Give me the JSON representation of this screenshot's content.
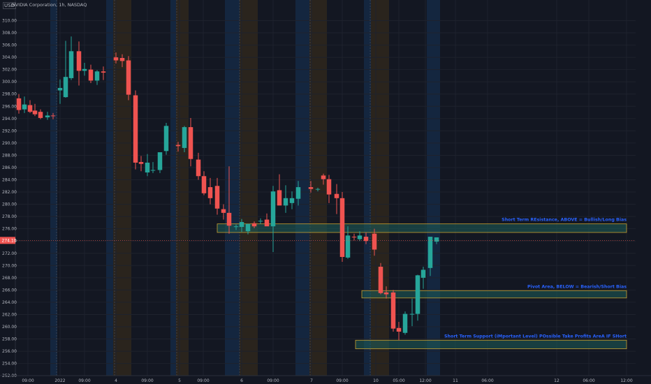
{
  "header": {
    "currency": "USD",
    "symbol_title": "NVIDIA Corporation, 1h, NASDAQ"
  },
  "colors": {
    "background": "#131722",
    "up": "#26a69a",
    "down": "#ef5350",
    "zone_fill": "#1d5e5a",
    "zone_border": "#c8a030",
    "label": "#2962ff",
    "price_tag": "#ef5350"
  },
  "current_price": {
    "value": 274.1,
    "label": "274.10"
  },
  "chart_data": {
    "type": "candlestick",
    "title": "NVIDIA Corporation, 1h, NASDAQ",
    "ylim": [
      251.5,
      311.5
    ],
    "y_ticks": [
      "252.00",
      "254.00",
      "256.00",
      "258.00",
      "260.00",
      "262.00",
      "264.00",
      "266.00",
      "268.00",
      "270.00",
      "272.00",
      "274.00",
      "276.00",
      "278.00",
      "280.00",
      "282.00",
      "284.00",
      "286.00",
      "288.00",
      "290.00",
      "292.00",
      "294.00",
      "296.00",
      "298.00",
      "300.00",
      "302.00",
      "304.00",
      "306.00",
      "308.00",
      "310.00"
    ],
    "x_ticks": [
      "09:00",
      "2022",
      "09:00",
      "4",
      "09:00",
      "5",
      "09:00",
      "6",
      "09:00",
      "7",
      "09:00",
      "10",
      "05:00",
      "12:00",
      "11",
      "06:00",
      "12",
      "06:00",
      "12:00"
    ],
    "grid": true,
    "series": [
      {
        "candles": [
          {
            "o": 297.3,
            "h": 298.0,
            "l": 294.8,
            "c": 295.4
          },
          {
            "o": 295.5,
            "h": 297.6,
            "l": 294.9,
            "c": 296.3
          },
          {
            "o": 296.2,
            "h": 297.0,
            "l": 294.9,
            "c": 295.1
          },
          {
            "o": 295.3,
            "h": 296.4,
            "l": 294.4,
            "c": 294.7
          },
          {
            "o": 295.1,
            "h": 295.5,
            "l": 293.9,
            "c": 294.1
          },
          {
            "o": 294.2,
            "h": 295.1,
            "l": 293.8,
            "c": 294.5
          },
          {
            "o": 294.5,
            "h": 294.9,
            "l": 293.9,
            "c": 294.4
          },
          {
            "o": 298.6,
            "h": 300.4,
            "l": 296.4,
            "c": 299.0
          },
          {
            "o": 297.5,
            "h": 306.7,
            "l": 297.4,
            "c": 300.8
          },
          {
            "o": 300.6,
            "h": 307.4,
            "l": 300.3,
            "c": 305.0
          },
          {
            "o": 305.0,
            "h": 306.6,
            "l": 299.4,
            "c": 301.8
          },
          {
            "o": 301.8,
            "h": 303.1,
            "l": 301.0,
            "c": 302.1
          },
          {
            "o": 302.0,
            "h": 302.8,
            "l": 299.8,
            "c": 300.2
          },
          {
            "o": 300.2,
            "h": 301.9,
            "l": 299.5,
            "c": 301.7
          },
          {
            "o": 301.7,
            "h": 302.5,
            "l": 300.3,
            "c": 301.5
          },
          {
            "o": 304.0,
            "h": 304.8,
            "l": 303.0,
            "c": 303.5
          },
          {
            "o": 303.9,
            "h": 304.5,
            "l": 302.4,
            "c": 303.4
          },
          {
            "o": 303.5,
            "h": 304.2,
            "l": 297.0,
            "c": 297.9
          },
          {
            "o": 297.8,
            "h": 298.6,
            "l": 285.7,
            "c": 286.8
          },
          {
            "o": 286.9,
            "h": 287.9,
            "l": 285.4,
            "c": 286.6
          },
          {
            "o": 285.2,
            "h": 288.2,
            "l": 284.6,
            "c": 286.8
          },
          {
            "o": 285.6,
            "h": 286.9,
            "l": 285.1,
            "c": 285.6
          },
          {
            "o": 285.6,
            "h": 288.3,
            "l": 285.1,
            "c": 288.5
          },
          {
            "o": 288.7,
            "h": 293.3,
            "l": 288.1,
            "c": 292.8
          },
          {
            "o": 289.7,
            "h": 290.2,
            "l": 288.6,
            "c": 289.5
          },
          {
            "o": 289.2,
            "h": 292.8,
            "l": 288.5,
            "c": 292.6
          },
          {
            "o": 292.6,
            "h": 294.1,
            "l": 286.2,
            "c": 287.4
          },
          {
            "o": 287.3,
            "h": 288.4,
            "l": 284.0,
            "c": 284.6
          },
          {
            "o": 284.6,
            "h": 285.4,
            "l": 281.5,
            "c": 281.8
          },
          {
            "o": 282.8,
            "h": 284.3,
            "l": 280.0,
            "c": 281.0
          },
          {
            "o": 283.0,
            "h": 284.3,
            "l": 278.3,
            "c": 279.3
          },
          {
            "o": 279.2,
            "h": 280.0,
            "l": 277.5,
            "c": 278.6
          },
          {
            "o": 278.6,
            "h": 286.2,
            "l": 275.2,
            "c": 276.5
          },
          {
            "o": 276.3,
            "h": 276.7,
            "l": 275.8,
            "c": 276.4
          },
          {
            "o": 276.3,
            "h": 277.6,
            "l": 275.5,
            "c": 277.1
          },
          {
            "o": 275.6,
            "h": 276.3,
            "l": 275.1,
            "c": 276.8
          },
          {
            "o": 276.9,
            "h": 277.2,
            "l": 276.1,
            "c": 276.4
          },
          {
            "o": 277.3,
            "h": 277.7,
            "l": 276.8,
            "c": 277.3
          },
          {
            "o": 277.5,
            "h": 278.5,
            "l": 276.6,
            "c": 276.4
          },
          {
            "o": 276.4,
            "h": 283.0,
            "l": 272.2,
            "c": 282.1
          },
          {
            "o": 282.3,
            "h": 284.9,
            "l": 280.2,
            "c": 279.8
          },
          {
            "o": 279.8,
            "h": 283.1,
            "l": 278.6,
            "c": 281.0
          },
          {
            "o": 280.2,
            "h": 282.1,
            "l": 279.2,
            "c": 281.0
          },
          {
            "o": 280.9,
            "h": 283.8,
            "l": 279.8,
            "c": 282.8
          },
          {
            "o": 282.8,
            "h": 283.8,
            "l": 281.9,
            "c": 282.5
          },
          {
            "o": 282.4,
            "h": 282.7,
            "l": 282.1,
            "c": 282.5
          },
          {
            "o": 284.7,
            "h": 285.0,
            "l": 283.2,
            "c": 284.1
          },
          {
            "o": 284.1,
            "h": 284.8,
            "l": 280.2,
            "c": 281.6
          },
          {
            "o": 281.7,
            "h": 283.3,
            "l": 278.4,
            "c": 281.0
          },
          {
            "o": 281.0,
            "h": 282.0,
            "l": 270.6,
            "c": 271.4
          },
          {
            "o": 271.3,
            "h": 276.4,
            "l": 271.1,
            "c": 274.9
          },
          {
            "o": 274.7,
            "h": 275.2,
            "l": 274.1,
            "c": 274.6
          },
          {
            "o": 274.3,
            "h": 275.6,
            "l": 274.0,
            "c": 274.9
          },
          {
            "o": 274.7,
            "h": 275.4,
            "l": 273.5,
            "c": 274.0
          },
          {
            "o": 275.2,
            "h": 276.0,
            "l": 271.6,
            "c": 272.6
          },
          {
            "o": 269.8,
            "h": 270.4,
            "l": 265.3,
            "c": 265.5
          },
          {
            "o": 265.6,
            "h": 266.6,
            "l": 264.6,
            "c": 265.3
          },
          {
            "o": 265.6,
            "h": 266.0,
            "l": 259.2,
            "c": 259.7
          },
          {
            "o": 259.8,
            "h": 260.8,
            "l": 257.8,
            "c": 259.2
          },
          {
            "o": 259.0,
            "h": 262.5,
            "l": 258.7,
            "c": 262.1
          },
          {
            "o": 262.0,
            "h": 264.6,
            "l": 260.1,
            "c": 262.1
          },
          {
            "o": 262.1,
            "h": 268.5,
            "l": 261.0,
            "c": 268.4
          },
          {
            "o": 268.0,
            "h": 269.8,
            "l": 266.2,
            "c": 269.3
          },
          {
            "o": 269.6,
            "h": 274.6,
            "l": 268.3,
            "c": 274.7
          },
          {
            "o": 273.9,
            "h": 274.6,
            "l": 273.5,
            "c": 274.6
          }
        ]
      }
    ],
    "zones": [
      {
        "label": "Short Term REsistance, ABOVE = Bullish/Long Bias",
        "top": 276.8,
        "bottom": 275.4
      },
      {
        "label": "Pivot Area, BELOW = Bearish/Short Bias",
        "top": 265.9,
        "bottom": 264.7
      },
      {
        "label": "Short Term Support (iMportant Level) POssible Take Profits AreA IF SHort",
        "top": 257.8,
        "bottom": 256.4
      }
    ]
  }
}
